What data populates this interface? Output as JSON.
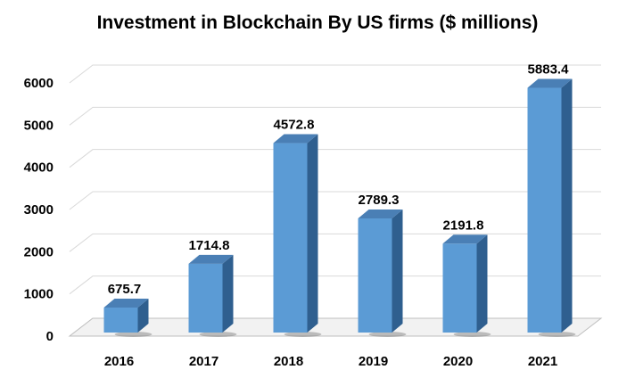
{
  "chart_data": {
    "type": "bar",
    "title": "Investment in Blockchain By US firms ($ millions)",
    "xlabel": "",
    "ylabel": "",
    "categories": [
      "2016",
      "2017",
      "2018",
      "2019",
      "2020",
      "2021"
    ],
    "values": [
      675.7,
      1714.8,
      4572.8,
      2789.3,
      2191.8,
      5883.4
    ],
    "data_labels": [
      "675.7",
      "1714.8",
      "4572.8",
      "2789.3",
      "2191.8",
      "5883.4"
    ],
    "y_ticks": [
      0,
      1000,
      2000,
      3000,
      4000,
      5000,
      6000
    ],
    "ylim": [
      0,
      6000
    ],
    "grid": true,
    "legend": "none",
    "style": "3d-column",
    "colors": {
      "bar_front": "#5b9bd5",
      "bar_side": "#2f5f8f",
      "bar_top": "#4a7fb5",
      "gridline": "#d9d9d9"
    }
  }
}
